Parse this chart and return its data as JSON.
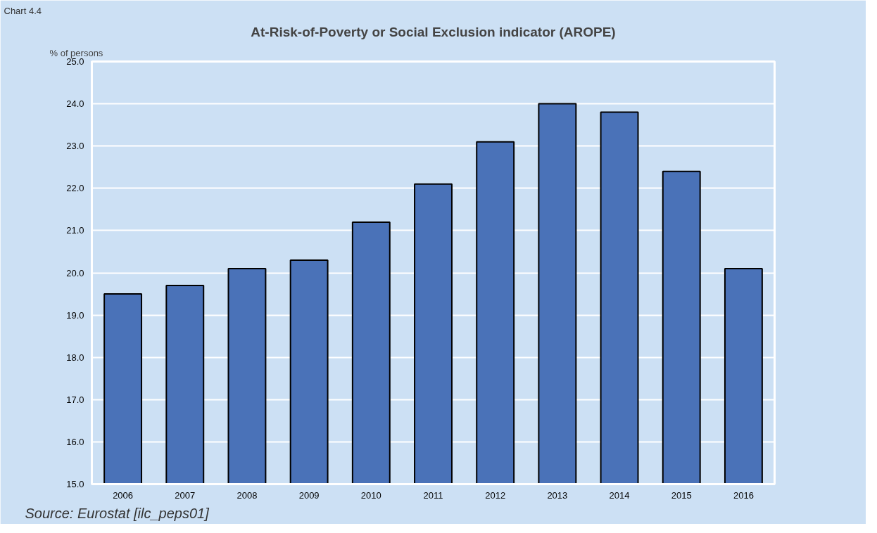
{
  "chart_data": {
    "type": "bar",
    "title": "At-Risk-of-Poverty or Social Exclusion indicator (AROPE)",
    "ylabel": "% of persons",
    "annotations": [
      "Chart 4.4",
      "Source: Eurostat [ilc_peps01]"
    ],
    "categories": [
      "2006",
      "2007",
      "2008",
      "2009",
      "2010",
      "2011",
      "2012",
      "2013",
      "2014",
      "2015",
      "2016"
    ],
    "values": [
      19.5,
      19.7,
      20.1,
      20.3,
      21.2,
      22.1,
      23.1,
      24.0,
      23.8,
      22.4,
      20.1
    ],
    "color": "#4a72b8",
    "ylim": [
      15,
      25
    ],
    "yticks": [
      {
        "value": 15,
        "label": "15.0"
      },
      {
        "value": 16,
        "label": "16.0"
      },
      {
        "value": 17,
        "label": "17.0"
      },
      {
        "value": 18,
        "label": "18.0"
      },
      {
        "value": 19,
        "label": "19.0"
      },
      {
        "value": 20,
        "label": "20.0"
      },
      {
        "value": 21,
        "label": "21.0"
      },
      {
        "value": 22,
        "label": "22.0"
      },
      {
        "value": 23,
        "label": "23.0"
      },
      {
        "value": 24,
        "label": "24.0"
      },
      {
        "value": 25,
        "label": "25.0"
      }
    ],
    "grid": "y"
  }
}
